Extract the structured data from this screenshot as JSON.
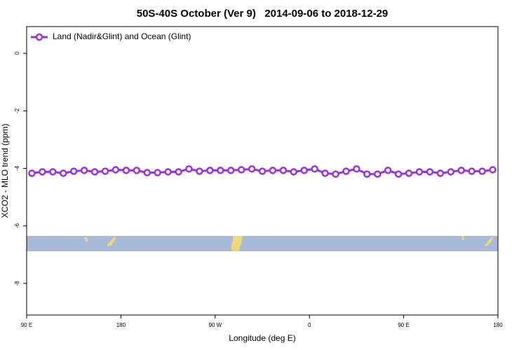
{
  "chart_data": {
    "type": "line",
    "title": "50S-40S October (Ver 9)   2014-09-06 to 2018-12-29",
    "xlabel": "Longitude (deg E)",
    "ylabel": "XCO2 - MLO trend (ppm)",
    "x": [
      95,
      105,
      115,
      125,
      135,
      145,
      155,
      165,
      175,
      185,
      195,
      205,
      215,
      225,
      235,
      245,
      255,
      265,
      275,
      285,
      295,
      305,
      315,
      325,
      335,
      345,
      355,
      365,
      375,
      385,
      395,
      405,
      415,
      425,
      435,
      445,
      455,
      465,
      475,
      485,
      495,
      505,
      515,
      525,
      535
    ],
    "series": [
      {
        "name": "Land (Nadir&Glint) and Ocean (Glint)",
        "color": "#9b30e0",
        "values": [
          -4.17,
          -4.12,
          -4.12,
          -4.17,
          -4.1,
          -4.07,
          -4.12,
          -4.1,
          -4.05,
          -4.07,
          -4.07,
          -4.15,
          -4.15,
          -4.12,
          -4.12,
          -4.02,
          -4.1,
          -4.07,
          -4.07,
          -4.07,
          -4.05,
          -4.02,
          -4.1,
          -4.07,
          -4.07,
          -4.12,
          -4.07,
          -4.02,
          -4.17,
          -4.2,
          -4.1,
          -4.02,
          -4.2,
          -4.2,
          -4.07,
          -4.2,
          -4.17,
          -4.12,
          -4.12,
          -4.17,
          -4.12,
          -4.07,
          -4.1,
          -4.1,
          -4.05
        ]
      }
    ],
    "xlim": [
      90,
      540
    ],
    "xticks": [
      {
        "value": 90,
        "label": "90 E"
      },
      180,
      {
        "value": 270,
        "label": "90 W"
      },
      {
        "value": 360,
        "label": "0"
      },
      {
        "value": 450,
        "label": "90 E"
      },
      {
        "value": 540,
        "label": "180"
      }
    ],
    "ylim": [
      -9.1,
      0.93
    ],
    "yticks": [
      0,
      -2,
      -4,
      -6,
      -8
    ],
    "legend": "top-left"
  }
}
